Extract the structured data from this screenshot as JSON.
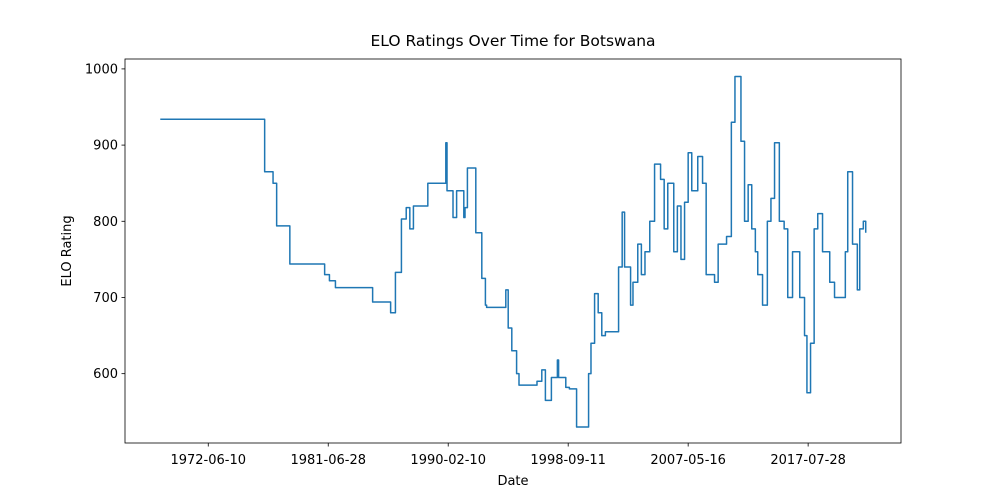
{
  "chart_data": {
    "type": "line",
    "title": "ELO Ratings Over Time for Botswana",
    "x_label": "Date",
    "y_label": "ELO Rating",
    "drawstyle": "steps-post",
    "x": [
      0,
      87,
      94,
      97,
      108,
      137,
      141,
      146,
      177,
      192,
      196,
      201,
      205,
      208,
      211,
      223,
      238,
      239,
      244,
      247,
      253,
      254,
      256,
      263,
      268,
      271,
      272,
      288,
      290,
      293,
      297,
      299,
      314,
      318,
      321,
      326,
      331,
      332,
      338,
      341,
      347,
      357,
      359,
      362,
      365,
      368,
      371,
      380,
      382,
      385,
      387,
      392,
      394,
      398,
      401,
      404,
      408,
      412,
      417,
      420,
      423,
      428,
      431,
      434,
      437,
      440,
      443,
      448,
      452,
      455,
      462,
      465,
      469,
      472,
      476,
      479,
      482,
      484,
      487,
      490,
      493,
      496,
      498,
      502,
      506,
      509,
      512,
      516,
      520,
      523,
      527,
      530,
      533,
      537,
      539,
      542,
      545,
      548,
      552,
      555,
      558,
      562,
      565,
      571,
      573,
      577,
      581,
      583,
      586,
      588
    ],
    "series": [
      {
        "name": "ELO Rating",
        "color": "#1f77b4",
        "values": [
          934,
          865,
          850,
          794,
          744,
          730,
          722,
          713,
          694,
          680,
          733,
          803,
          818,
          790,
          820,
          850,
          903,
          840,
          805,
          840,
          805,
          818,
          870,
          785,
          725,
          690,
          687,
          710,
          660,
          630,
          600,
          585,
          590,
          605,
          565,
          595,
          618,
          595,
          582,
          580,
          530,
          600,
          640,
          705,
          680,
          650,
          655,
          655,
          740,
          812,
          740,
          690,
          720,
          770,
          730,
          760,
          800,
          875,
          855,
          790,
          850,
          760,
          820,
          750,
          825,
          890,
          840,
          885,
          850,
          730,
          720,
          770,
          770,
          780,
          930,
          990,
          990,
          905,
          800,
          848,
          790,
          760,
          730,
          690,
          800,
          830,
          903,
          800,
          790,
          700,
          760,
          760,
          700,
          650,
          575,
          640,
          790,
          810,
          760,
          760,
          720,
          700,
          700,
          760,
          865,
          770,
          710,
          790,
          800,
          785
        ]
      }
    ],
    "xlim": [
      -29.4,
      617.4
    ],
    "xticks": [
      {
        "value": 40,
        "label": "1972-06-10"
      },
      {
        "value": 140,
        "label": "1981-06-28"
      },
      {
        "value": 240,
        "label": "1990-02-10"
      },
      {
        "value": 340,
        "label": "1998-09-11"
      },
      {
        "value": 440,
        "label": "2007-05-16"
      },
      {
        "value": 540,
        "label": "2017-07-28"
      }
    ],
    "ylim": [
      509,
      1013
    ],
    "yticks": [
      600,
      700,
      800,
      900,
      1000
    ]
  }
}
